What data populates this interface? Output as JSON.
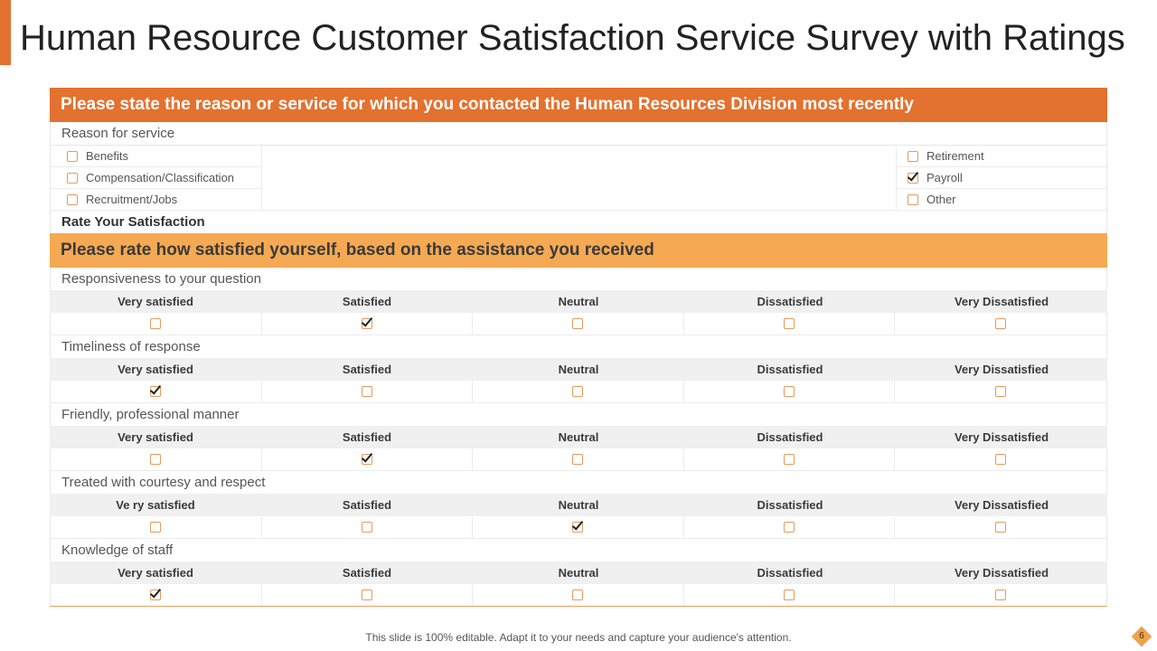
{
  "title": "Human Resource Customer Satisfaction Service Survey with Ratings",
  "section1": {
    "header": "Please state the reason or service for which you contacted the Human Resources Division most recently",
    "reason_label": "Reason for service",
    "left_options": [
      {
        "label": "Benefits",
        "checked": false
      },
      {
        "label": "Compensation/Classification",
        "checked": false
      },
      {
        "label": "Recruitment/Jobs",
        "checked": false
      }
    ],
    "right_options": [
      {
        "label": "Retirement",
        "checked": false
      },
      {
        "label": "Payroll",
        "checked": true
      },
      {
        "label": "Other",
        "checked": false
      }
    ]
  },
  "rate_title": "Rate Your Satisfaction",
  "section2": {
    "header": "Please rate how satisfied yourself, based on the assistance you received",
    "questions": [
      {
        "label": "Responsiveness to your question",
        "options": [
          "Very satisfied",
          "Satisfied",
          "Neutral",
          "Dissatisfied",
          "Very Dissatisfied"
        ],
        "selected": 1
      },
      {
        "label": "Timeliness of response",
        "options": [
          "Very satisfied",
          "Satisfied",
          "Neutral",
          "Dissatisfied",
          "Very Dissatisfied"
        ],
        "selected": 0
      },
      {
        "label": "Friendly, professional manner",
        "options": [
          "Very satisfied",
          "Satisfied",
          "Neutral",
          "Dissatisfied",
          "Very Dissatisfied"
        ],
        "selected": 1
      },
      {
        "label": "Treated with courtesy and respect",
        "options": [
          "Ve ry satisfied",
          "Satisfied",
          "Neutral",
          "Dissatisfied",
          "Very Dissatisfied"
        ],
        "selected": 2
      },
      {
        "label": "Knowledge of staff",
        "options": [
          "Very satisfied",
          "Satisfied",
          "Neutral",
          "Dissatisfied",
          "Very Dissatisfied"
        ],
        "selected": 0
      }
    ]
  },
  "footer": "This slide is 100% editable. Adapt it to your needs and capture your audience's attention.",
  "page_number": "6",
  "colors": {
    "accent": "#e3712f",
    "header2": "#f5a953",
    "badge": "#f0a24b"
  }
}
